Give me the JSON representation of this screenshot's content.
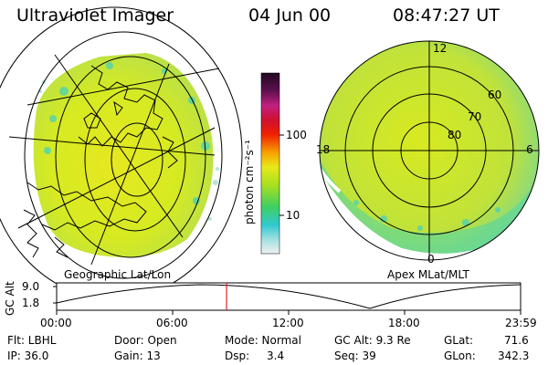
{
  "header": {
    "instrument": "Ultraviolet Imager",
    "date": "04 Jun 00",
    "time": "08:47:27 UT"
  },
  "colorbar": {
    "unit_label": "photon cm⁻²s⁻¹",
    "tick_labels": [
      "100",
      "10"
    ]
  },
  "panels": {
    "left_label": "Geographic Lat/Lon",
    "right_label": "Apex MLat/MLT"
  },
  "polar": {
    "mlt_labels": [
      "12",
      "18",
      "6",
      "0"
    ],
    "mlat_labels": [
      "60",
      "70",
      "80"
    ]
  },
  "altitude_plot": {
    "ylabel": "GC Alt",
    "yticks": [
      "9.0",
      "1.8"
    ],
    "xticks": [
      "00:00",
      "06:00",
      "12:00",
      "18:00",
      "23:59"
    ],
    "current_time_hours": 8.79
  },
  "info": {
    "flt": "Flt: LBHL",
    "ip": "IP: 36.0",
    "door": "Door: Open",
    "gain": "Gain: 13",
    "mode": "Mode: Normal",
    "dsp_label": "Dsp:",
    "dsp_value": "3.4",
    "gc_alt": "GC Alt: 9.3 Re",
    "seq": "Seq: 39",
    "glat_label": "GLat:",
    "glat_value": "71.6",
    "glon_label": "GLon:",
    "glon_value": "342.3"
  },
  "colors": {
    "aurora_green": "#c8e81a",
    "aurora_yellow": "#e8ea1c",
    "aurora_cyan": "#3fd0c0",
    "marker_red": "#e02020"
  }
}
